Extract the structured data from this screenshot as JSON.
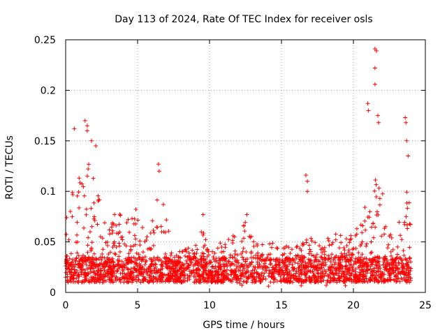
{
  "chart_data": {
    "type": "scatter",
    "title": "Day 113 of 2024, Rate Of TEC Index for receiver osls",
    "xlabel": "GPS time / hours",
    "ylabel": "ROTI / TECUs",
    "xlim": [
      0,
      25
    ],
    "ylim": [
      0,
      0.25
    ],
    "xticks": [
      0,
      5,
      10,
      15,
      20,
      25
    ],
    "yticks": [
      0,
      0.05,
      0.1,
      0.15,
      0.2,
      0.25
    ],
    "xtick_labels": [
      "0",
      "5",
      "10",
      "15",
      "20",
      "25"
    ],
    "ytick_labels": [
      "0",
      "0.05",
      "0.1",
      "0.15",
      "0.2",
      "0.25"
    ],
    "grid": true,
    "marker": "+",
    "color": "#ff0000",
    "baseline_band": {
      "low": 0.01,
      "high": 0.035
    },
    "envelope": [
      {
        "x": 0.0,
        "y": 0.095
      },
      {
        "x": 0.5,
        "y": 0.11
      },
      {
        "x": 1.0,
        "y": 0.12
      },
      {
        "x": 1.5,
        "y": 0.13
      },
      {
        "x": 2.0,
        "y": 0.12
      },
      {
        "x": 2.5,
        "y": 0.08
      },
      {
        "x": 3.0,
        "y": 0.07
      },
      {
        "x": 3.5,
        "y": 0.085
      },
      {
        "x": 4.0,
        "y": 0.075
      },
      {
        "x": 4.5,
        "y": 0.08
      },
      {
        "x": 5.0,
        "y": 0.095
      },
      {
        "x": 5.5,
        "y": 0.06
      },
      {
        "x": 6.0,
        "y": 0.07
      },
      {
        "x": 6.5,
        "y": 0.1
      },
      {
        "x": 7.0,
        "y": 0.08
      },
      {
        "x": 7.5,
        "y": 0.045
      },
      {
        "x": 8.0,
        "y": 0.04
      },
      {
        "x": 8.5,
        "y": 0.045
      },
      {
        "x": 9.0,
        "y": 0.045
      },
      {
        "x": 9.5,
        "y": 0.065
      },
      {
        "x": 10.0,
        "y": 0.04
      },
      {
        "x": 10.5,
        "y": 0.045
      },
      {
        "x": 11.0,
        "y": 0.06
      },
      {
        "x": 11.5,
        "y": 0.055
      },
      {
        "x": 12.0,
        "y": 0.065
      },
      {
        "x": 12.5,
        "y": 0.07
      },
      {
        "x": 13.0,
        "y": 0.055
      },
      {
        "x": 13.5,
        "y": 0.05
      },
      {
        "x": 14.0,
        "y": 0.05
      },
      {
        "x": 14.5,
        "y": 0.05
      },
      {
        "x": 15.0,
        "y": 0.05
      },
      {
        "x": 15.5,
        "y": 0.045
      },
      {
        "x": 16.0,
        "y": 0.045
      },
      {
        "x": 16.5,
        "y": 0.05
      },
      {
        "x": 17.0,
        "y": 0.055
      },
      {
        "x": 17.5,
        "y": 0.05
      },
      {
        "x": 18.0,
        "y": 0.06
      },
      {
        "x": 18.5,
        "y": 0.06
      },
      {
        "x": 19.0,
        "y": 0.06
      },
      {
        "x": 19.5,
        "y": 0.055
      },
      {
        "x": 20.0,
        "y": 0.06
      },
      {
        "x": 20.5,
        "y": 0.07
      },
      {
        "x": 21.0,
        "y": 0.1
      },
      {
        "x": 21.5,
        "y": 0.13
      },
      {
        "x": 22.0,
        "y": 0.1
      },
      {
        "x": 22.5,
        "y": 0.07
      },
      {
        "x": 23.0,
        "y": 0.075
      },
      {
        "x": 23.5,
        "y": 0.1
      },
      {
        "x": 24.0,
        "y": 0.1
      }
    ],
    "notable_points": [
      {
        "x": 0.6,
        "y": 0.162
      },
      {
        "x": 1.35,
        "y": 0.17
      },
      {
        "x": 1.5,
        "y": 0.165
      },
      {
        "x": 1.5,
        "y": 0.16
      },
      {
        "x": 1.8,
        "y": 0.15
      },
      {
        "x": 2.1,
        "y": 0.145
      },
      {
        "x": 6.45,
        "y": 0.127
      },
      {
        "x": 6.5,
        "y": 0.12
      },
      {
        "x": 9.55,
        "y": 0.077
      },
      {
        "x": 12.6,
        "y": 0.077
      },
      {
        "x": 16.7,
        "y": 0.116
      },
      {
        "x": 16.8,
        "y": 0.11
      },
      {
        "x": 16.8,
        "y": 0.1
      },
      {
        "x": 21.0,
        "y": 0.187
      },
      {
        "x": 21.05,
        "y": 0.18
      },
      {
        "x": 21.5,
        "y": 0.241
      },
      {
        "x": 21.6,
        "y": 0.239
      },
      {
        "x": 21.5,
        "y": 0.222
      },
      {
        "x": 21.5,
        "y": 0.206
      },
      {
        "x": 21.7,
        "y": 0.175
      },
      {
        "x": 21.75,
        "y": 0.168
      },
      {
        "x": 23.6,
        "y": 0.173
      },
      {
        "x": 23.65,
        "y": 0.168
      },
      {
        "x": 23.7,
        "y": 0.15
      },
      {
        "x": 23.8,
        "y": 0.135
      }
    ]
  }
}
